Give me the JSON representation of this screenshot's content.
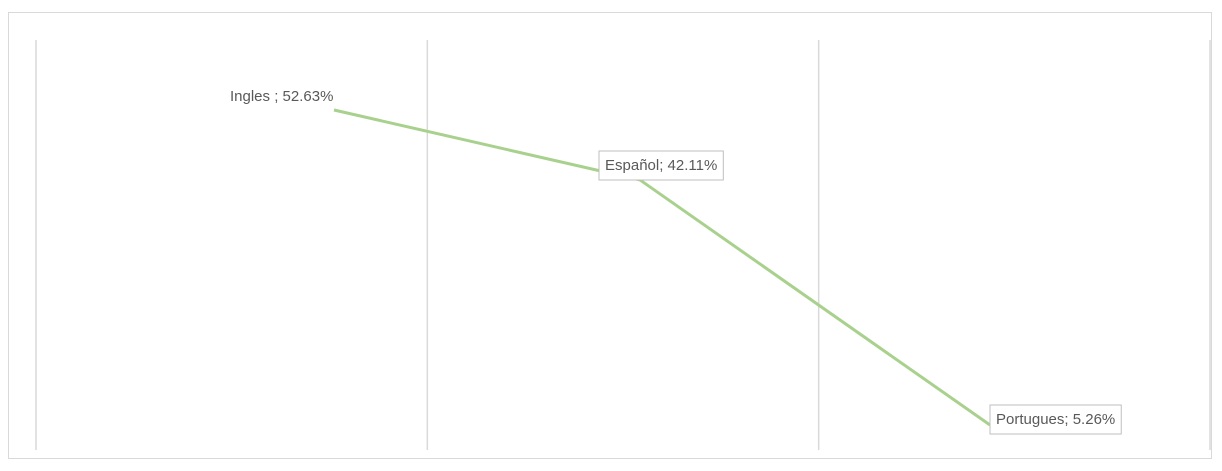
{
  "chart_data": {
    "type": "line",
    "categories": [
      "Ingles",
      "Español",
      "Portugues"
    ],
    "series": [
      {
        "values": [
          52.63,
          42.11,
          5.26
        ],
        "color": "#a9d18e"
      }
    ],
    "data_labels": [
      "Ingles ; 52.63%",
      "Español; 42.11%",
      "Portugues; 5.26%"
    ],
    "data_label_boxed": [
      false,
      true,
      true
    ],
    "ylim": [
      0,
      60
    ],
    "grid": "vertical",
    "gridline_color": "#d9d9d9",
    "legend": "none"
  }
}
